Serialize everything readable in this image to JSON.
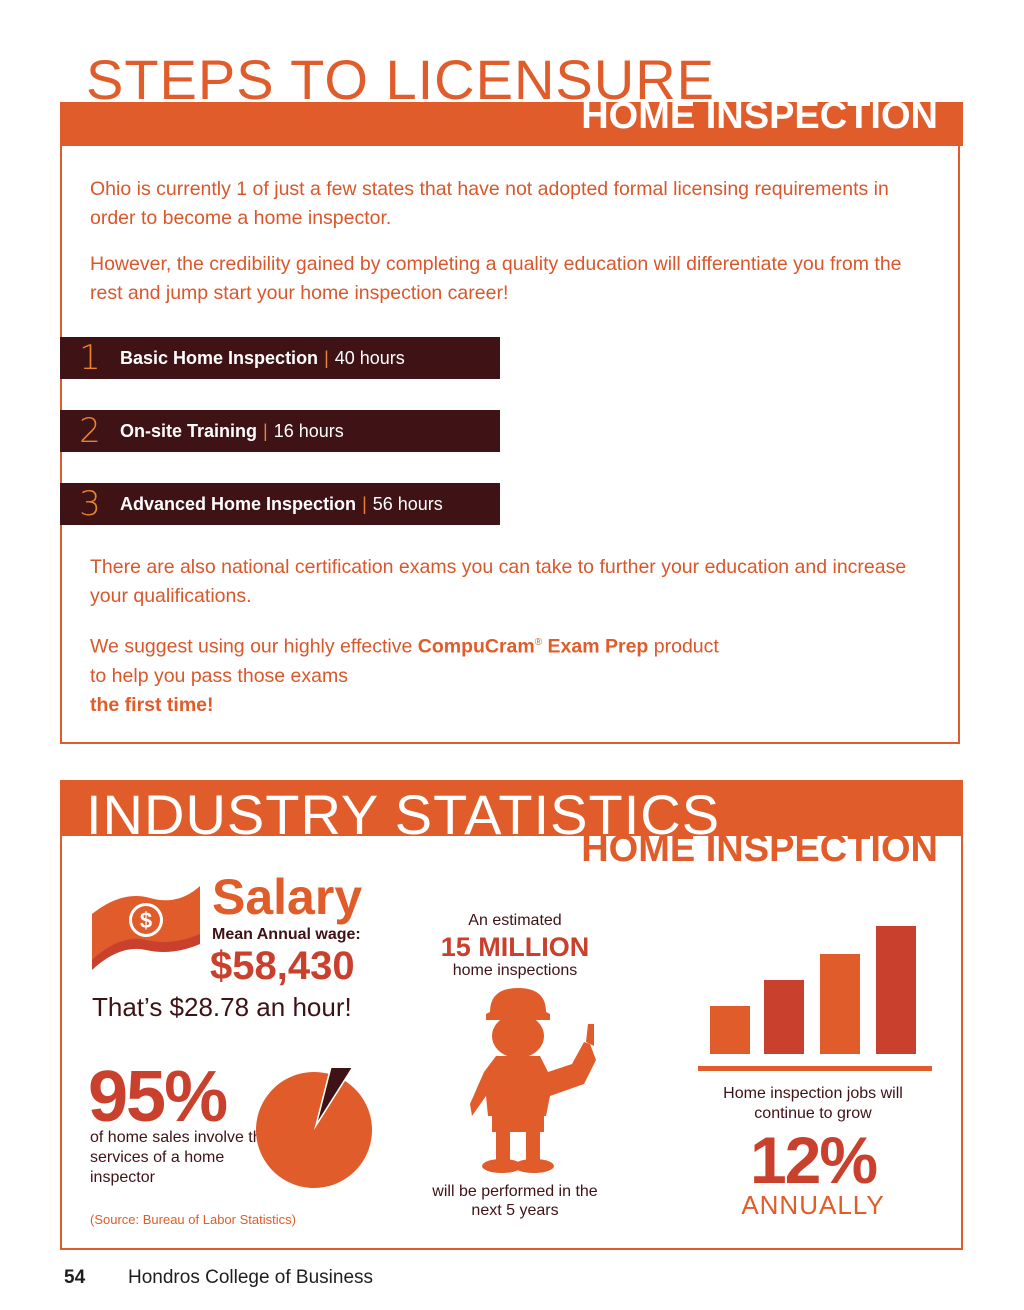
{
  "licensure": {
    "title": "STEPS TO LICENSURE",
    "subtitle": "HOME INSPECTION",
    "para1": "Ohio is currently 1 of just a few states that have not adopted formal licensing requirements in order to become a home inspector.",
    "para2": "However, the credibility gained by completing a quality education will differentiate you from the rest and jump start your home inspection career!",
    "steps": [
      {
        "number": "1",
        "title": "Basic Home Inspection",
        "separator": "|",
        "hours": "40 hours"
      },
      {
        "number": "2",
        "title": "On-site Training",
        "separator": "|",
        "hours": "16 hours"
      },
      {
        "number": "3",
        "title": "Advanced Home Inspection",
        "separator": "|",
        "hours": "56 hours"
      }
    ],
    "para3": "There are also national certification exams you can take to further your education and increase your qualifications.",
    "para4_prefix": "We suggest using our highly effective ",
    "para4_product": "CompuCram",
    "para4_reg": "®",
    "para4_product2": " Exam Prep",
    "para4_suffix": " product",
    "para4_line2": "to help you pass those exams",
    "para4_emph": "the first time!"
  },
  "statistics": {
    "title": "INDUSTRY STATISTICS",
    "subtitle": "HOME INSPECTION",
    "salary": {
      "heading": "Salary",
      "label": "Mean Annual wage:",
      "value": "$58,430",
      "hourly": "That’s $28.78 an hour!",
      "icon": "money-bill-icon"
    },
    "home_sales": {
      "value": "95%",
      "text": "of home sales involve the services of a home inspector",
      "percent": 95,
      "icon": "pie-chart-icon"
    },
    "inspections": {
      "label": "An estimated",
      "value": "15 MILLION",
      "text": "home inspections",
      "footnote": "will be performed in the next 5 years",
      "icon": "inspector-figure-icon"
    },
    "jobs": {
      "text": "Home inspection jobs will continue to grow",
      "value": "12%",
      "unit": "ANNUALLY",
      "icon": "bar-growth-icon"
    },
    "source": "(Source: Bureau of Labor Statistics)"
  },
  "footer": {
    "page_number": "54",
    "name": "Hondros College of Business"
  },
  "colors": {
    "accent": "#e05c2a",
    "dark": "#3f1216",
    "red": "#c9402d",
    "gold": "#e9832f"
  }
}
